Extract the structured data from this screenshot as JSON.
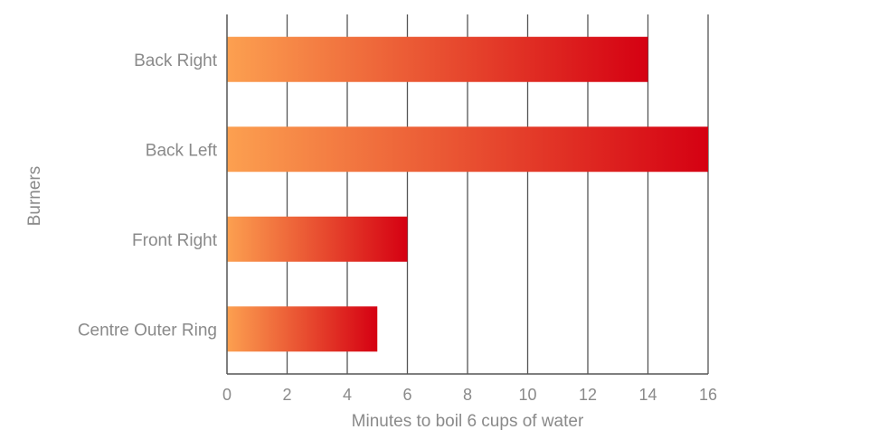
{
  "chart_data": {
    "type": "bar",
    "orientation": "horizontal",
    "categories": [
      "Back Right",
      "Back Left",
      "Front Right",
      "Centre Outer Ring"
    ],
    "values": [
      14,
      16,
      6,
      5
    ],
    "xlabel": "Minutes to boil 6 cups of water",
    "ylabel": "Burners",
    "xlim": [
      0,
      16
    ],
    "xticks": [
      "0",
      "2",
      "4",
      "6",
      "8",
      "10",
      "12",
      "14",
      "16"
    ],
    "grid": true,
    "bar_gradient": {
      "start": "#fca050",
      "end": "#d50012"
    }
  }
}
